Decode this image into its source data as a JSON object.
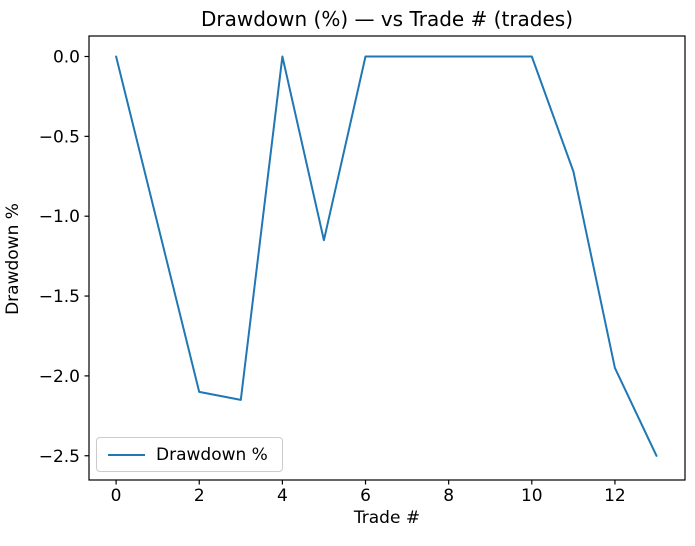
{
  "chart_data": {
    "type": "line",
    "title": "Drawdown (%) — vs Trade # (trades)",
    "xlabel": "Trade #",
    "ylabel": "Drawdown %",
    "x": [
      0,
      1,
      2,
      3,
      4,
      5,
      6,
      7,
      8,
      9,
      10,
      11,
      12,
      13
    ],
    "series": [
      {
        "name": "Drawdown %",
        "values": [
          0.0,
          -1.05,
          -2.1,
          -2.15,
          0.0,
          -1.15,
          0.0,
          0.0,
          0.0,
          0.0,
          0.0,
          -0.72,
          -1.95,
          -2.5
        ],
        "color": "#1f77b4"
      }
    ],
    "x_ticks": {
      "values": [
        0,
        2,
        4,
        6,
        8,
        10,
        12
      ],
      "labels": [
        "0",
        "2",
        "4",
        "6",
        "8",
        "10",
        "12"
      ]
    },
    "y_ticks": {
      "values": [
        0.0,
        -0.5,
        -1.0,
        -1.5,
        -2.0,
        -2.5
      ],
      "labels": [
        "0.0",
        "−0.5",
        "−1.0",
        "−1.5",
        "−2.0",
        "−2.5"
      ]
    },
    "xlim": [
      -0.65,
      13.65
    ],
    "ylim": [
      -2.625,
      0.125
    ],
    "grid": false,
    "legend": {
      "position": "lower left",
      "entries": [
        "Drawdown %"
      ]
    },
    "legend_label": "Drawdown %"
  },
  "colors": {
    "line": "#1f77b4",
    "spines": "#000000",
    "legend_border": "#cccccc",
    "background": "#ffffff"
  }
}
